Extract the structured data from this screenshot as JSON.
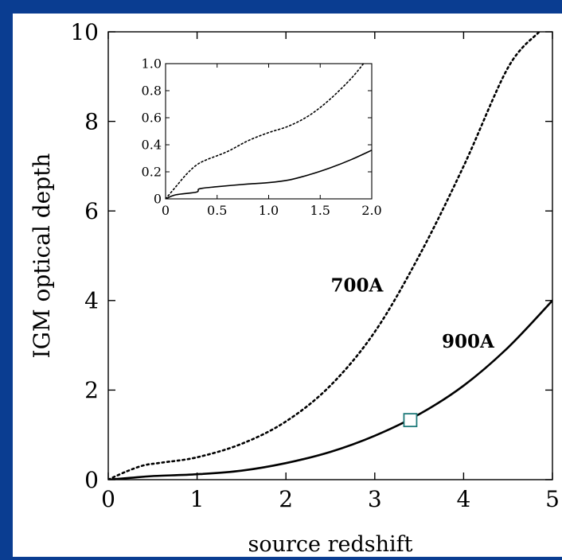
{
  "colors": {
    "frame_background": "#0a3d91",
    "plot_background": "#ffffff",
    "ink": "#000000",
    "marker": "#1f7a7a"
  },
  "chart_data": [
    {
      "type": "line",
      "xlabel": "source redshift",
      "ylabel": "IGM optical depth",
      "xlim": [
        0,
        5
      ],
      "ylim": [
        0,
        10
      ],
      "x_ticks": [
        0,
        1,
        2,
        3,
        4,
        5
      ],
      "y_ticks": [
        0,
        2,
        4,
        6,
        8,
        10
      ],
      "x_tick_labels": [
        "0",
        "1",
        "2",
        "3",
        "4",
        "5"
      ],
      "y_tick_labels": [
        "0",
        "2",
        "4",
        "6",
        "8",
        "10"
      ],
      "grid": false,
      "series": [
        {
          "name": "700A",
          "style": "dotted",
          "x": [
            0,
            0.2,
            0.4,
            0.6,
            1.0,
            1.5,
            2.0,
            2.5,
            3.0,
            3.5,
            4.0,
            4.5,
            4.85
          ],
          "y": [
            0,
            0.18,
            0.32,
            0.38,
            0.5,
            0.8,
            1.3,
            2.1,
            3.3,
            5.0,
            7.0,
            9.2,
            10.0
          ]
        },
        {
          "name": "900A",
          "style": "solid",
          "x": [
            0,
            0.25,
            0.5,
            1.0,
            1.5,
            2.0,
            2.5,
            3.0,
            3.5,
            4.0,
            4.5,
            5.0
          ],
          "y": [
            0,
            0.04,
            0.08,
            0.12,
            0.2,
            0.37,
            0.62,
            0.98,
            1.46,
            2.1,
            2.95,
            4.0
          ]
        }
      ],
      "annotations": [
        {
          "text": "700A",
          "x": 2.8,
          "y": 4.2
        },
        {
          "text": "900A",
          "x": 4.05,
          "y": 2.95
        }
      ],
      "marker": {
        "shape": "square",
        "x": 3.4,
        "y": 1.33
      }
    },
    {
      "type": "line",
      "role": "inset",
      "xlim": [
        0,
        2.0
      ],
      "ylim": [
        0,
        1.0
      ],
      "x_ticks": [
        0,
        0.5,
        1.0,
        1.5,
        2.0
      ],
      "y_ticks": [
        0,
        0.2,
        0.4,
        0.6,
        0.8,
        1.0
      ],
      "x_tick_labels": [
        "0",
        "0.5",
        "1.0",
        "1.5",
        "2.0"
      ],
      "y_tick_labels": [
        "0",
        "0.2",
        "0.4",
        "0.6",
        "0.8",
        "1.0"
      ],
      "series": [
        {
          "style": "dotted",
          "x": [
            0,
            0.1,
            0.2,
            0.3,
            0.4,
            0.6,
            0.8,
            1.0,
            1.2,
            1.4,
            1.6,
            1.8,
            1.92
          ],
          "y": [
            0,
            0.09,
            0.18,
            0.25,
            0.29,
            0.35,
            0.43,
            0.49,
            0.54,
            0.62,
            0.74,
            0.89,
            1.0
          ]
        },
        {
          "style": "solid",
          "x": [
            0,
            0.1,
            0.3,
            0.33,
            0.5,
            0.8,
            1.0,
            1.2,
            1.4,
            1.6,
            1.8,
            2.0
          ],
          "y": [
            0,
            0.03,
            0.05,
            0.075,
            0.09,
            0.11,
            0.12,
            0.14,
            0.18,
            0.23,
            0.29,
            0.36
          ]
        }
      ]
    }
  ]
}
